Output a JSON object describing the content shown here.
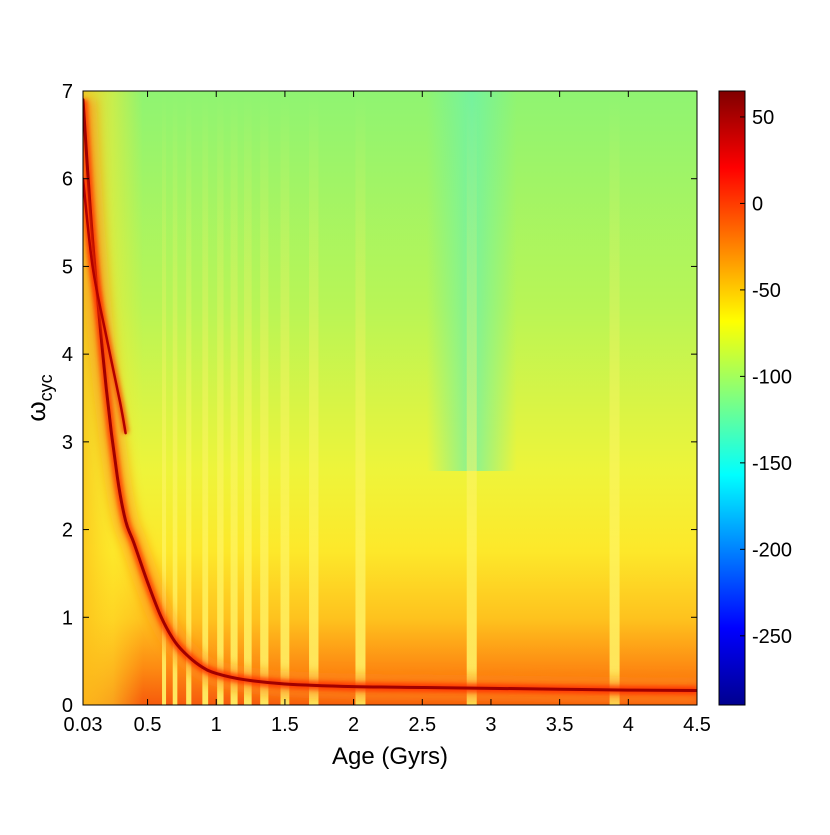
{
  "chart_data": {
    "type": "heatmap",
    "xlabel": "Age (Gyrs)",
    "ylabel_main": "ω",
    "ylabel_sub": "cyc",
    "xlim": [
      0.03,
      4.5
    ],
    "ylim": [
      0,
      7
    ],
    "x_ticks": [
      0.03,
      0.5,
      1,
      1.5,
      2,
      2.5,
      3,
      3.5,
      4,
      4.5
    ],
    "x_tick_labels": [
      "0.03",
      "0.5",
      "1",
      "1.5",
      "2",
      "2.5",
      "3",
      "3.5",
      "4",
      "4.5"
    ],
    "y_ticks": [
      0,
      1,
      2,
      3,
      4,
      5,
      6,
      7
    ],
    "y_tick_labels": [
      "0",
      "1",
      "2",
      "3",
      "4",
      "5",
      "6",
      "7"
    ],
    "colorbar": {
      "colormap": "jet",
      "clim": [
        -290,
        65
      ],
      "ticks": [
        50,
        0,
        -50,
        -100,
        -150,
        -200,
        -250
      ],
      "tick_labels": [
        "50",
        "0",
        "-50",
        "-100",
        "-150",
        "-200",
        "-250"
      ]
    },
    "ridge": {
      "x": [
        0.03,
        0.1,
        0.2,
        0.28,
        0.34,
        0.4,
        0.5,
        0.6,
        0.7,
        0.8,
        0.9,
        1.0,
        1.2,
        1.5,
        2.0,
        2.5,
        3.0,
        3.5,
        4.0,
        4.5
      ],
      "y": [
        6.9,
        5.3,
        3.6,
        2.6,
        2.1,
        1.85,
        1.4,
        1.0,
        0.72,
        0.55,
        0.43,
        0.36,
        0.29,
        0.24,
        0.21,
        0.2,
        0.19,
        0.18,
        0.17,
        0.165
      ]
    },
    "secondary_ridge": {
      "x": [
        0.03,
        0.1,
        0.2,
        0.3,
        0.34
      ],
      "y": [
        6.0,
        5.0,
        4.2,
        3.45,
        3.1
      ]
    },
    "resonance_stripes_x": [
      0.62,
      0.7,
      0.8,
      0.92,
      1.03,
      1.13,
      1.23,
      1.35,
      1.5,
      1.71,
      2.05,
      2.86,
      3.9
    ]
  }
}
